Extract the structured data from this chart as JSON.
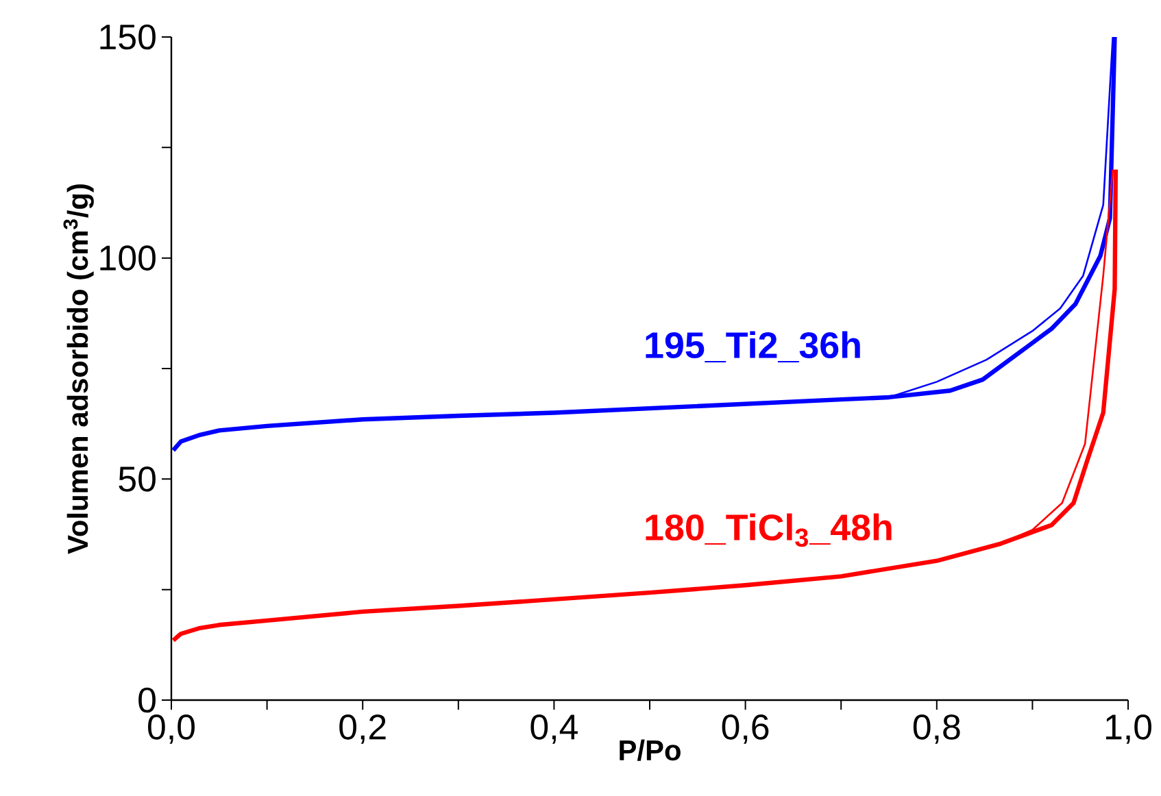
{
  "chart_data": {
    "type": "line",
    "xlabel": "P/Po",
    "ylabel": "Volumen adsorbido (cm$^{3}$/g)",
    "xlim": [
      0,
      1
    ],
    "ylim": [
      0,
      150
    ],
    "xticks": [
      {
        "value": 0,
        "label": "0,0"
      },
      {
        "value": 0.1,
        "label": null
      },
      {
        "value": 0.2,
        "label": "0,2"
      },
      {
        "value": 0.3,
        "label": null
      },
      {
        "value": 0.4,
        "label": "0,4"
      },
      {
        "value": 0.5,
        "label": null
      },
      {
        "value": 0.6,
        "label": "0,6"
      },
      {
        "value": 0.7,
        "label": null
      },
      {
        "value": 0.8,
        "label": "0,8"
      },
      {
        "value": 0.9,
        "label": null
      },
      {
        "value": 1,
        "label": "1,0"
      }
    ],
    "yticks": [
      0,
      {
        "value": 25,
        "label": null
      },
      50,
      {
        "value": 75,
        "label": null
      },
      100,
      {
        "value": 125,
        "label": null
      },
      150
    ],
    "legend": false,
    "line_style": "solid",
    "marker": "none",
    "series": [
      {
        "name": "195_Ti2_36h",
        "color": "#0000ff",
        "x": [
          0.002,
          0.01,
          0.03,
          0.05,
          0.1,
          0.2,
          0.3,
          0.4,
          0.5,
          0.6,
          0.7,
          0.75,
          0.814,
          0.848,
          0.895,
          0.92,
          0.945,
          0.971,
          0.981,
          0.986
        ],
        "values": [
          56.5,
          58.5,
          60,
          61,
          62,
          63.5,
          64.3,
          65,
          66,
          67,
          68,
          68.5,
          70,
          72.5,
          80,
          84,
          89.6,
          100.5,
          109,
          150
        ]
      },
      {
        "color": "#0000ff",
        "x": [
          0.5,
          0.6,
          0.7,
          0.75,
          0.8,
          0.852,
          0.9,
          0.929,
          0.953,
          0.974,
          0.984
        ],
        "values": [
          66,
          67,
          68,
          68.5,
          72,
          77,
          83.5,
          88.6,
          96,
          112,
          150
        ]
      },
      {
        "name": "180_TiCl$_{3}$_48h",
        "color": "#ff0000",
        "x": [
          0.002,
          0.01,
          0.03,
          0.05,
          0.1,
          0.2,
          0.3,
          0.4,
          0.5,
          0.6,
          0.7,
          0.8,
          0.867,
          0.92,
          0.943,
          0.957,
          0.974,
          0.986,
          0.987
        ],
        "values": [
          13.5,
          15,
          16.3,
          17,
          18,
          20,
          21.3,
          22.8,
          24.3,
          26,
          28,
          31.5,
          35.4,
          39.6,
          44.6,
          54,
          65,
          93,
          120
        ]
      },
      {
        "color": "#ff0000",
        "x": [
          0.7,
          0.8,
          0.867,
          0.9,
          0.931,
          0.955,
          0.974,
          0.984
        ],
        "values": [
          28,
          31.5,
          35.4,
          38.5,
          44.6,
          58,
          96,
          120
        ]
      }
    ]
  }
}
